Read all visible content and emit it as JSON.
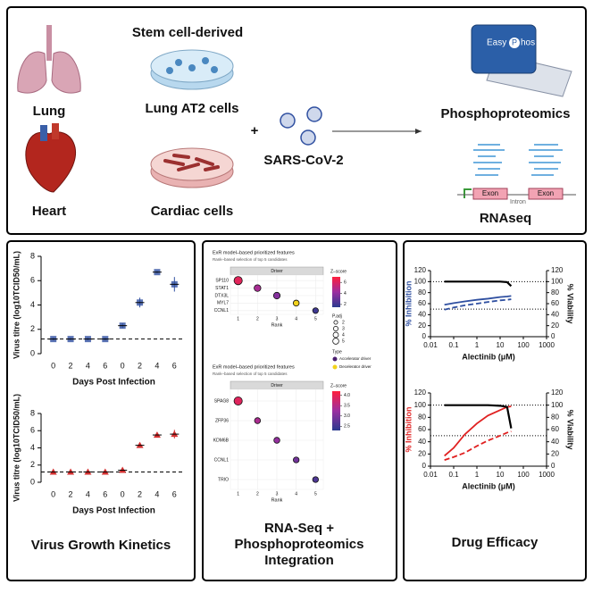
{
  "top": {
    "stem_label": "Stem cell-derived",
    "lung": "Lung",
    "lung_cells": "Lung AT2 cells",
    "heart": "Heart",
    "cardiac_cells": "Cardiac cells",
    "plus": "+",
    "virus": "SARS-CoV-2",
    "easyphos": [
      "Easy",
      "P",
      "hos"
    ],
    "phospho": "Phosphoproteomics",
    "exons": [
      "Exon",
      "Exon"
    ],
    "intron": "Intron",
    "rnaseq": "RNAseq"
  },
  "panel_titles": [
    [
      "Virus Growth Kinetics"
    ],
    [
      "RNA-Seq +",
      "Phosphoproteomics",
      "Integration"
    ],
    [
      "Drug Efficacy"
    ]
  ],
  "chart_data": [
    {
      "type": "strip",
      "ylabel": "Virus titre (log10TCID50/mL)",
      "xlabel": "Days Post Infection",
      "categories": [
        "0",
        "2",
        "4",
        "6",
        "0",
        "2",
        "4",
        "6"
      ],
      "values": [
        1.2,
        1.2,
        1.2,
        1.2,
        2.3,
        4.2,
        6.7,
        5.7
      ],
      "errors": [
        0.1,
        0.1,
        0.1,
        0.1,
        0.2,
        0.4,
        0.1,
        0.6
      ],
      "color": "#2f4fa0",
      "marker": "square",
      "ylim": [
        0,
        8
      ],
      "yticks": [
        0,
        2,
        4,
        6,
        8
      ],
      "threshold": 1.2
    },
    {
      "type": "strip",
      "ylabel": "Virus titre (log10TCID50/mL)",
      "xlabel": "Days Post Infection",
      "categories": [
        "0",
        "2",
        "4",
        "6",
        "0",
        "2",
        "4",
        "6"
      ],
      "values": [
        1.2,
        1.2,
        1.2,
        1.2,
        1.4,
        4.3,
        5.5,
        5.6
      ],
      "errors": [
        0.1,
        0.1,
        0.1,
        0.1,
        0.1,
        0.3,
        0.3,
        0.5
      ],
      "color": "#d32f2f",
      "marker": "triangle",
      "ylim": [
        0,
        8
      ],
      "yticks": [
        0,
        2,
        4,
        6,
        8
      ],
      "threshold": 1.2
    },
    {
      "type": "dot",
      "title": "ExR model–based prioritized features",
      "subtitle": "Rank–based selection of top 5 candidates",
      "facet": "Driver",
      "categories": [
        "SP110",
        "STAT1",
        "DTX3L",
        "MYL7",
        "CCNL1"
      ],
      "x": [
        1,
        2,
        3,
        4,
        5
      ],
      "values": [
        6.2,
        4.6,
        3.7,
        3.0,
        2.0
      ],
      "sizes": [
        4.8,
        3.2,
        3.1,
        2.5,
        2.3
      ],
      "types": [
        0,
        0,
        0,
        1,
        0
      ],
      "xlabel": "Rank",
      "xlim": [
        0.6,
        5.4
      ],
      "xticks": [
        1,
        2,
        3,
        4,
        5
      ],
      "zlabel": "Z–score",
      "zlim": [
        1.5,
        7
      ],
      "zticks": [
        2,
        4,
        6
      ],
      "zcolors": [
        "#2b3a8f",
        "#9b2fa0",
        "#ff1f3d"
      ],
      "size_label": "P.adj",
      "size_ticks": [
        2,
        3,
        4,
        5
      ],
      "type_label": "Type",
      "type_names": [
        "Accelerator driver",
        "Decelerator driver"
      ],
      "type_colors": [
        "#4b1f6f",
        "#f2d21b"
      ]
    },
    {
      "type": "dot",
      "title": "ExR model–based prioritized features",
      "subtitle": "Rank–based selection of top 5 candidates",
      "facet": "Driver",
      "categories": [
        "SPAG8",
        "ZFP36",
        "KDM6B",
        "CCNL1",
        "TRIO"
      ],
      "x": [
        1,
        2,
        3,
        4,
        5
      ],
      "values": [
        3.9,
        3.4,
        3.2,
        2.9,
        2.6
      ],
      "sizes": [
        4.8,
        2.5,
        2.5,
        2.4,
        2.4
      ],
      "xlabel": "Rank",
      "xlim": [
        0.6,
        5.4
      ],
      "xticks": [
        1,
        2,
        3,
        4,
        5
      ],
      "zlabel": "Z–score",
      "zlim": [
        2.3,
        4.2
      ],
      "zticks": [
        2.5,
        {
          "value": 3,
          "label": "3.0"
        },
        3.5,
        {
          "value": 4,
          "label": "4.0"
        }
      ],
      "zcolors": [
        "#2b3a8f",
        "#9b2fa0",
        "#ff1f3d"
      ]
    },
    {
      "type": "line",
      "xscale": "log",
      "xlabel": "Alectinib (μM)",
      "ylabel": "% Inhibition",
      "y2label": "% Viability",
      "ylabel_color": "#2f4fa0",
      "x": [
        0.04,
        0.1,
        0.3,
        1,
        3,
        10,
        20,
        30
      ],
      "xlim": [
        0.01,
        1000
      ],
      "xticks": [
        0.01,
        0.1,
        1,
        10,
        100,
        1000
      ],
      "ylim": [
        0,
        120
      ],
      "yticks": [
        0,
        20,
        40,
        60,
        80,
        100,
        120
      ],
      "y2lim": [
        0,
        120
      ],
      "y2ticks": [
        0,
        20,
        40,
        60,
        80,
        100,
        120
      ],
      "ref_lines": [
        100,
        50
      ],
      "series": [
        {
          "color": "#2f4fa0",
          "dash": false,
          "values": [
            58,
            61,
            64,
            67,
            69,
            72,
            73,
            74
          ]
        },
        {
          "color": "#2f4fa0",
          "dash": true,
          "values": [
            49,
            53,
            57,
            60,
            63,
            66,
            67,
            68
          ]
        },
        {
          "color": "#000000",
          "dash": false,
          "axis": "y2",
          "values": [
            100,
            100,
            100,
            100,
            100,
            100,
            99,
            92
          ]
        }
      ]
    },
    {
      "type": "line",
      "xscale": "log",
      "xlabel": "Alectinib (μM)",
      "ylabel": "% Inhibition",
      "y2label": "% Viability",
      "ylabel_color": "#e02020",
      "x": [
        0.04,
        0.1,
        0.3,
        1,
        3,
        10,
        20,
        30
      ],
      "xlim": [
        0.01,
        1000
      ],
      "xticks": [
        0.01,
        0.1,
        1,
        10,
        100,
        1000
      ],
      "ylim": [
        0,
        120
      ],
      "yticks": [
        0,
        20,
        40,
        60,
        80,
        100,
        120
      ],
      "y2lim": [
        0,
        120
      ],
      "y2ticks": [
        0,
        20,
        40,
        60,
        80,
        100,
        120
      ],
      "ref_lines": [
        100,
        50
      ],
      "series": [
        {
          "color": "#e02020",
          "dash": false,
          "values": [
            17,
            30,
            52,
            70,
            83,
            92,
            97,
            98
          ]
        },
        {
          "color": "#e02020",
          "dash": true,
          "values": [
            10,
            15,
            22,
            33,
            42,
            50,
            55,
            57
          ]
        },
        {
          "color": "#000000",
          "dash": false,
          "axis": "y2",
          "values": [
            100,
            100,
            100,
            100,
            100,
            99,
            97,
            62
          ]
        }
      ]
    }
  ]
}
